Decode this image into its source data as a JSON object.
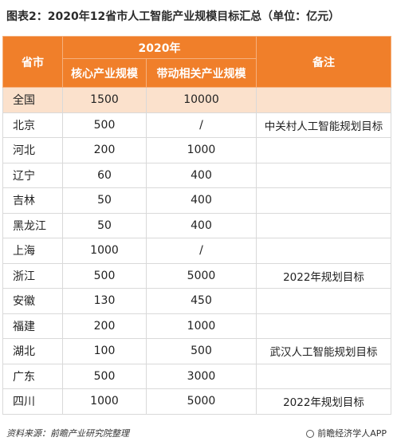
{
  "title": "图表2：2020年12省市人工智能产业规模目标汇总（单位：亿元）",
  "table": {
    "header_province": "省市",
    "header_year": "2020年",
    "header_core": "核心产业规模",
    "header_related": "带动相关产业规模",
    "header_note": "备注",
    "rows": [
      {
        "province": "全国",
        "core": "1500",
        "related": "10000",
        "note": ""
      },
      {
        "province": "北京",
        "core": "500",
        "related": "/",
        "note": "中关村人工智能规划目标"
      },
      {
        "province": "河北",
        "core": "200",
        "related": "1000",
        "note": ""
      },
      {
        "province": "辽宁",
        "core": "60",
        "related": "400",
        "note": ""
      },
      {
        "province": "吉林",
        "core": "50",
        "related": "400",
        "note": ""
      },
      {
        "province": "黑龙江",
        "core": "50",
        "related": "400",
        "note": ""
      },
      {
        "province": "上海",
        "core": "1000",
        "related": "/",
        "note": ""
      },
      {
        "province": "浙江",
        "core": "500",
        "related": "5000",
        "note": "2022年规划目标"
      },
      {
        "province": "安徽",
        "core": "130",
        "related": "450",
        "note": ""
      },
      {
        "province": "福建",
        "core": "200",
        "related": "1000",
        "note": ""
      },
      {
        "province": "湖北",
        "core": "100",
        "related": "500",
        "note": "武汉人工智能规划目标"
      },
      {
        "province": "广东",
        "core": "500",
        "related": "3000",
        "note": ""
      },
      {
        "province": "四川",
        "core": "1000",
        "related": "5000",
        "note": "2022年规划目标"
      }
    ]
  },
  "footer": {
    "source": "资料来源：前瞻产业研究院整理",
    "brand": "前瞻经济学人APP",
    "brand_icon": "qianzhan-logo-icon"
  },
  "colors": {
    "header_bg": "#f07f2a",
    "highlight_row_bg": "#fbe1cc",
    "border": "#d9d9d9"
  }
}
